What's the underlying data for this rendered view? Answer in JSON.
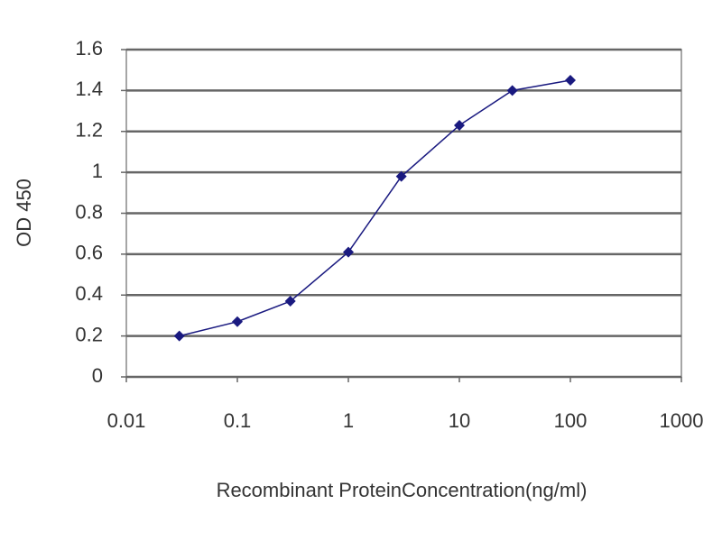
{
  "chart_data": {
    "type": "line",
    "xlabel": "Recombinant ProteinConcentration(ng/ml)",
    "ylabel": "OD 450",
    "x": [
      0.03,
      0.1,
      0.3,
      1,
      3,
      10,
      30,
      100
    ],
    "series": [
      {
        "name": "OD 450",
        "color": "#1a1a80",
        "values": [
          0.2,
          0.27,
          0.37,
          0.61,
          0.98,
          1.23,
          1.4,
          1.45
        ]
      }
    ],
    "xscale": "log",
    "xlim": [
      0.01,
      1000
    ],
    "xticks": [
      0.01,
      0.1,
      1,
      10,
      100,
      1000
    ],
    "ylim": [
      0,
      1.6
    ],
    "yticks": [
      0,
      0.2,
      0.4,
      0.6,
      0.8,
      1,
      1.2,
      1.4,
      1.6
    ],
    "grid": true
  }
}
